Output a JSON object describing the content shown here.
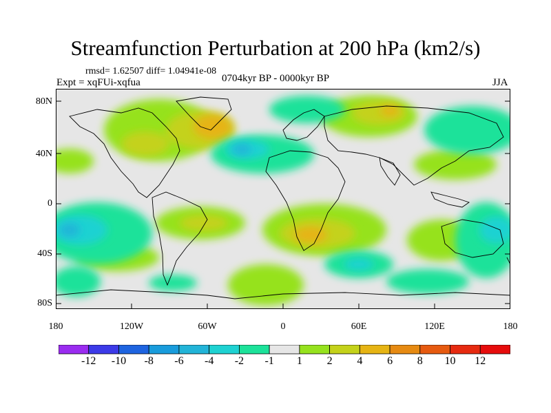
{
  "title": "Streamfunction Perturbation at 200 hPa (km2/s)",
  "stats_line": "rmsd= 1.62507 diff= 1.04941e-08",
  "experiment": "Expt = xqFUi-xqfua",
  "period": "0704kyr BP - 0000kyr BP",
  "season": "JJA",
  "y_axis_labels": [
    "80N",
    "40N",
    "0",
    "40S",
    "80S"
  ],
  "x_axis_labels": [
    "180",
    "120W",
    "60W",
    "0",
    "60E",
    "120E",
    "180"
  ],
  "colorbar": {
    "labels": [
      "-12",
      "-10",
      "-8",
      "-6",
      "-4",
      "-2",
      "-1",
      "1",
      "2",
      "4",
      "6",
      "8",
      "10",
      "12"
    ],
    "colors": [
      "#9a2cf0",
      "#3c3ae8",
      "#1e64e0",
      "#199cdc",
      "#22b4d8",
      "#1ed2d2",
      "#1ce29a",
      "#e6e6e6",
      "#96e21e",
      "#c4d21a",
      "#e6b414",
      "#e68a12",
      "#e65a10",
      "#e62a10",
      "#e60c0c"
    ]
  },
  "colors": {
    "land_outline": "#000000",
    "neutral": "#e6e6e6"
  }
}
